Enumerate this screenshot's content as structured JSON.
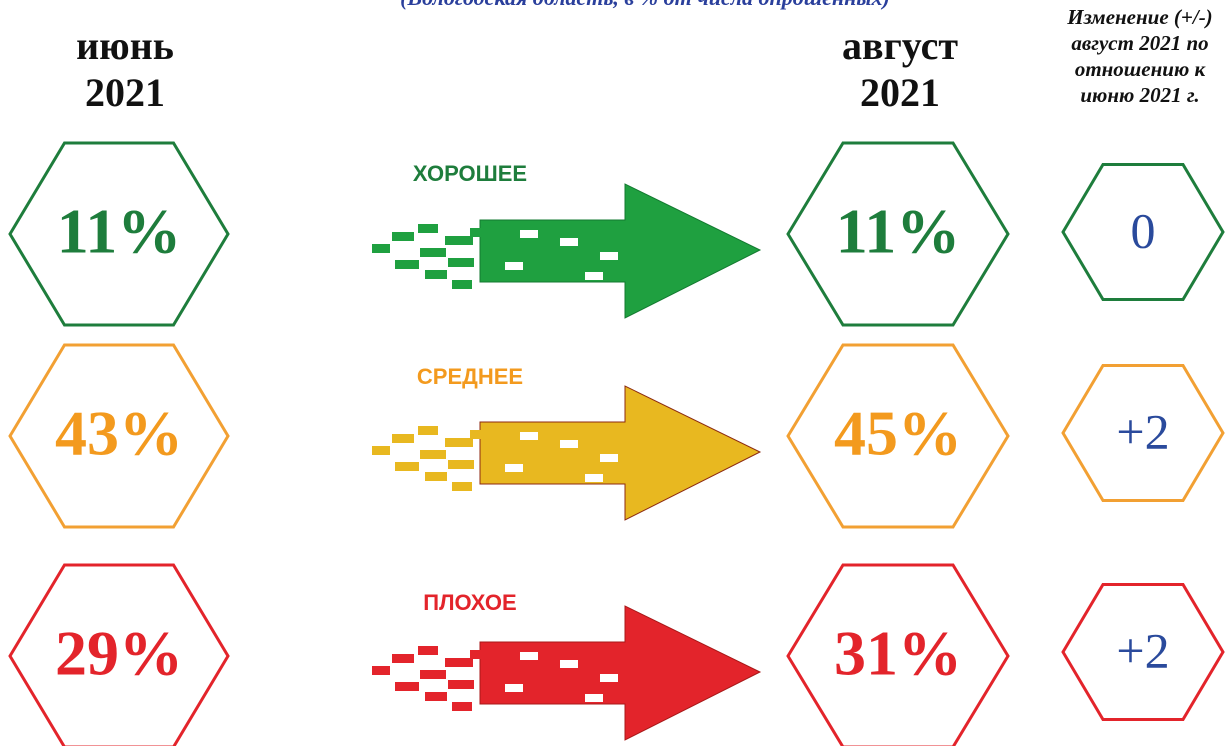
{
  "subtitle": "(Вологодская область, в % от числа опрошенных)",
  "columns": {
    "june": [
      "июнь",
      "2021"
    ],
    "august": [
      "август",
      "2021"
    ],
    "change": [
      "Изменение (+/-)",
      "август 2021 по",
      "отношению к",
      "июню 2021 г."
    ]
  },
  "rows": [
    {
      "label": "ХОРОШЕЕ",
      "june": "11%",
      "august": "11%",
      "change": "0"
    },
    {
      "label": "СРЕДНЕЕ",
      "june": "43%",
      "august": "45%",
      "change": "+2"
    },
    {
      "label": "ПЛОХОЕ",
      "june": "29%",
      "august": "31%",
      "change": "+2"
    }
  ]
}
